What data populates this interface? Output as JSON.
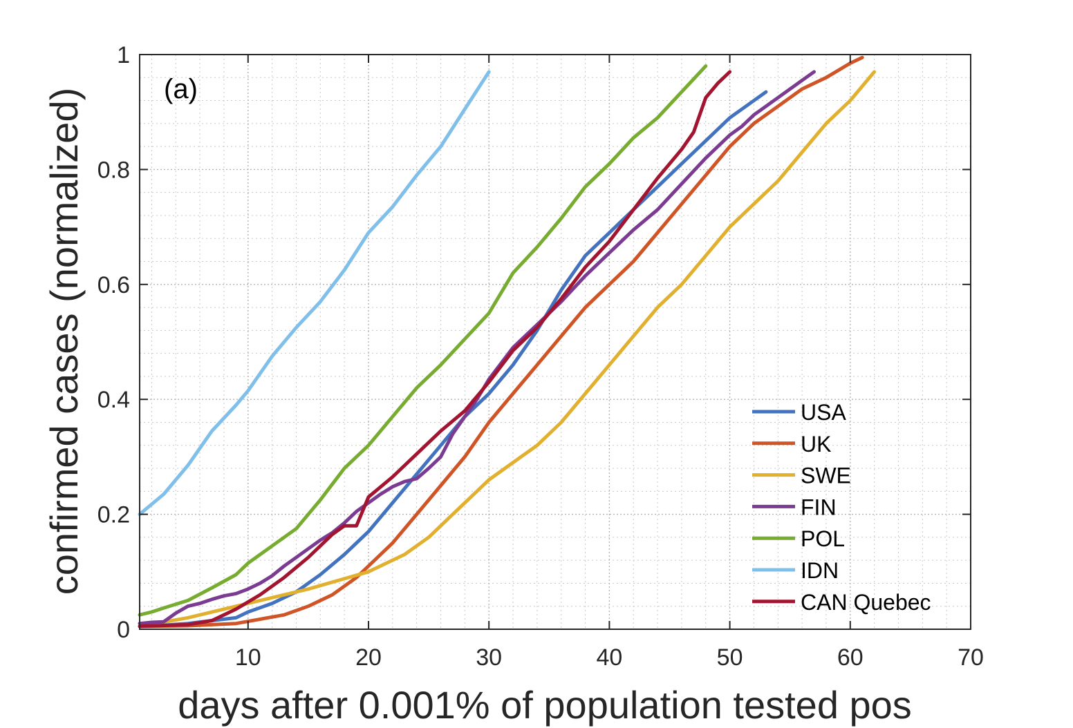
{
  "chart_data": {
    "type": "line",
    "panel_label": "(a)",
    "xlabel": "days after 0.001% of population tested pos",
    "ylabel": "confirmed cases (normalized)",
    "xlim": [
      1,
      70
    ],
    "ylim": [
      0,
      1
    ],
    "xticks": [
      10,
      20,
      30,
      40,
      50,
      60,
      70
    ],
    "yticks": [
      0,
      0.2,
      0.4,
      0.6,
      0.8,
      1
    ],
    "ytick_labels": [
      "0",
      "0.2",
      "0.4",
      "0.6",
      "0.8",
      "1"
    ],
    "grid": "minor-dotted",
    "legend_position": "bottom-right",
    "series": [
      {
        "name": "USA",
        "color": "#4373be",
        "x": [
          1,
          3,
          5,
          7,
          9,
          10,
          12,
          14,
          16,
          18,
          20,
          22,
          24,
          26,
          28,
          30,
          32,
          34,
          36,
          38,
          40,
          42,
          44,
          46,
          48,
          50,
          52,
          53
        ],
        "y": [
          0.005,
          0.007,
          0.01,
          0.015,
          0.02,
          0.03,
          0.045,
          0.065,
          0.095,
          0.13,
          0.17,
          0.22,
          0.27,
          0.32,
          0.37,
          0.41,
          0.46,
          0.52,
          0.59,
          0.65,
          0.69,
          0.73,
          0.77,
          0.81,
          0.85,
          0.89,
          0.92,
          0.935
        ]
      },
      {
        "name": "UK",
        "color": "#cf5426",
        "x": [
          1,
          5,
          9,
          13,
          15,
          17,
          19,
          20,
          22,
          24,
          26,
          28,
          30,
          32,
          34,
          36,
          38,
          40,
          42,
          44,
          46,
          48,
          50,
          52,
          54,
          56,
          58,
          60,
          61
        ],
        "y": [
          0.005,
          0.006,
          0.01,
          0.025,
          0.04,
          0.06,
          0.09,
          0.11,
          0.15,
          0.2,
          0.25,
          0.3,
          0.36,
          0.41,
          0.46,
          0.51,
          0.56,
          0.6,
          0.64,
          0.69,
          0.74,
          0.79,
          0.84,
          0.88,
          0.91,
          0.94,
          0.96,
          0.985,
          0.995
        ]
      },
      {
        "name": "SWE",
        "color": "#e0b02e",
        "x": [
          1,
          5,
          10,
          15,
          20,
          23,
          25,
          27,
          29,
          30,
          32,
          34,
          36,
          38,
          40,
          42,
          44,
          46,
          48,
          50,
          52,
          54,
          56,
          58,
          60,
          62
        ],
        "y": [
          0.005,
          0.02,
          0.045,
          0.07,
          0.1,
          0.13,
          0.16,
          0.2,
          0.24,
          0.26,
          0.29,
          0.32,
          0.36,
          0.41,
          0.46,
          0.51,
          0.56,
          0.6,
          0.65,
          0.7,
          0.74,
          0.78,
          0.83,
          0.88,
          0.92,
          0.97
        ]
      },
      {
        "name": "FIN",
        "color": "#7a3b91",
        "x": [
          1,
          2,
          3,
          4,
          5,
          6,
          7,
          8,
          9,
          10,
          11,
          12,
          13,
          14,
          15,
          16,
          17,
          18,
          19,
          20,
          21,
          22,
          23,
          24,
          25,
          26,
          27,
          28,
          29,
          30,
          32,
          34,
          36,
          38,
          40,
          42,
          44,
          46,
          48,
          50,
          51,
          52,
          53,
          54,
          55,
          56,
          57
        ],
        "y": [
          0.01,
          0.012,
          0.013,
          0.028,
          0.04,
          0.045,
          0.052,
          0.058,
          0.062,
          0.07,
          0.08,
          0.093,
          0.11,
          0.125,
          0.14,
          0.155,
          0.168,
          0.185,
          0.205,
          0.22,
          0.235,
          0.248,
          0.257,
          0.262,
          0.28,
          0.3,
          0.34,
          0.37,
          0.4,
          0.435,
          0.49,
          0.53,
          0.57,
          0.615,
          0.655,
          0.695,
          0.73,
          0.775,
          0.82,
          0.86,
          0.875,
          0.895,
          0.91,
          0.925,
          0.94,
          0.955,
          0.97
        ]
      },
      {
        "name": "POL",
        "color": "#77ac30",
        "x": [
          1,
          2,
          3,
          5,
          7,
          9,
          10,
          12,
          14,
          16,
          18,
          20,
          22,
          24,
          26,
          28,
          30,
          32,
          34,
          36,
          38,
          40,
          42,
          44,
          46,
          48
        ],
        "y": [
          0.025,
          0.03,
          0.037,
          0.05,
          0.072,
          0.095,
          0.115,
          0.145,
          0.175,
          0.225,
          0.28,
          0.32,
          0.37,
          0.42,
          0.46,
          0.505,
          0.55,
          0.62,
          0.665,
          0.715,
          0.77,
          0.81,
          0.855,
          0.89,
          0.935,
          0.98
        ]
      },
      {
        "name": "IDN",
        "color": "#7fbfea",
        "x": [
          1,
          3,
          5,
          7,
          9,
          10,
          12,
          14,
          16,
          18,
          20,
          22,
          24,
          26,
          28,
          30
        ],
        "y": [
          0.2,
          0.235,
          0.285,
          0.345,
          0.39,
          0.415,
          0.475,
          0.525,
          0.57,
          0.625,
          0.69,
          0.735,
          0.79,
          0.84,
          0.905,
          0.97
        ]
      },
      {
        "name": "CAN Quebec",
        "color": "#a2142f",
        "x": [
          1,
          5,
          7,
          9,
          11,
          13,
          15,
          17,
          18,
          19,
          20,
          22,
          24,
          26,
          28,
          30,
          32,
          34,
          36,
          38,
          40,
          42,
          44,
          46,
          47,
          48,
          49,
          50
        ],
        "y": [
          0.005,
          0.008,
          0.015,
          0.035,
          0.06,
          0.09,
          0.125,
          0.165,
          0.18,
          0.18,
          0.23,
          0.265,
          0.305,
          0.345,
          0.38,
          0.43,
          0.485,
          0.525,
          0.575,
          0.63,
          0.675,
          0.73,
          0.785,
          0.835,
          0.865,
          0.925,
          0.95,
          0.97
        ]
      }
    ]
  }
}
